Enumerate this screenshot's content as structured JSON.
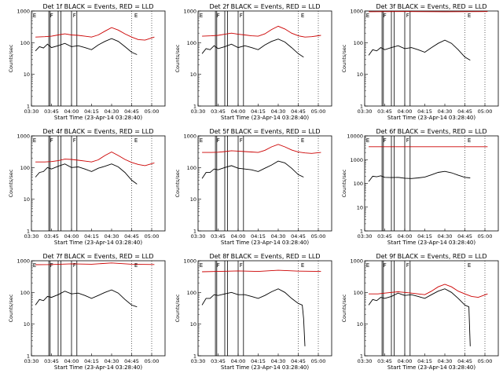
{
  "chart_data": [
    {
      "type": "line",
      "title": "Det 1f BLACK = Events, RED = LLD",
      "xlabel": "Start Time (23-Apr-14 03:28:40)",
      "ylabel": "Counts/sec",
      "x_ticks": [
        "03:30",
        "03:45",
        "04:00",
        "04:15",
        "04:30",
        "04:45",
        "05:00"
      ],
      "y_ticks": [
        "1",
        "10",
        "100",
        "1000"
      ],
      "ylim": [
        1,
        1000
      ],
      "y_scale": "log",
      "markers": [
        "E",
        "F",
        "F",
        "E"
      ],
      "series": [
        {
          "name": "Events",
          "color": "#000000",
          "x": [
            "03:33",
            "03:36",
            "03:39",
            "03:42",
            "03:45",
            "03:50",
            "03:55",
            "04:00",
            "04:05",
            "04:10",
            "04:15",
            "04:20",
            "04:25",
            "04:30",
            "04:35",
            "04:40",
            "04:45",
            "04:49"
          ],
          "y": [
            55,
            75,
            68,
            90,
            70,
            80,
            95,
            75,
            80,
            70,
            60,
            85,
            110,
            135,
            110,
            75,
            50,
            42
          ]
        },
        {
          "name": "LLD",
          "color": "#cc0000",
          "x": [
            "03:33",
            "03:40",
            "03:45",
            "03:50",
            "03:55",
            "04:00",
            "04:05",
            "04:10",
            "04:15",
            "04:20",
            "04:25",
            "04:30",
            "04:35",
            "04:40",
            "04:45",
            "04:50",
            "04:55",
            "05:02"
          ],
          "y": [
            150,
            155,
            160,
            175,
            190,
            175,
            170,
            160,
            150,
            175,
            230,
            300,
            250,
            190,
            150,
            125,
            120,
            150
          ]
        }
      ]
    },
    {
      "type": "line",
      "title": "Det 2f BLACK = Events, RED = LLD",
      "xlabel": "Start Time (23-Apr-14 03:28:40)",
      "ylabel": "Counts/sec",
      "x_ticks": [
        "03:30",
        "03:45",
        "04:00",
        "04:15",
        "04:30",
        "04:45",
        "05:00"
      ],
      "y_ticks": [
        "1",
        "10",
        "100",
        "1000"
      ],
      "ylim": [
        1,
        1000
      ],
      "y_scale": "log",
      "markers": [
        "E",
        "F",
        "F",
        "E"
      ],
      "series": [
        {
          "name": "Events",
          "color": "#000000",
          "x": [
            "03:33",
            "03:36",
            "03:39",
            "03:42",
            "03:45",
            "03:50",
            "03:55",
            "04:00",
            "04:05",
            "04:10",
            "04:15",
            "04:20",
            "04:25",
            "04:30",
            "04:35",
            "04:40",
            "04:45",
            "04:49"
          ],
          "y": [
            45,
            65,
            60,
            80,
            65,
            75,
            90,
            70,
            80,
            70,
            60,
            85,
            110,
            130,
            105,
            70,
            45,
            35
          ]
        },
        {
          "name": "LLD",
          "color": "#cc0000",
          "x": [
            "03:33",
            "03:40",
            "03:45",
            "03:50",
            "03:55",
            "04:00",
            "04:05",
            "04:10",
            "04:15",
            "04:20",
            "04:25",
            "04:30",
            "04:35",
            "04:40",
            "04:45",
            "04:50",
            "04:55",
            "05:02"
          ],
          "y": [
            160,
            165,
            170,
            185,
            200,
            185,
            175,
            165,
            160,
            190,
            260,
            330,
            270,
            200,
            165,
            150,
            155,
            170
          ]
        }
      ]
    },
    {
      "type": "line",
      "title": "Det 3f BLACK = Events, RED = LLD",
      "xlabel": "Start Time (23-Apr-14 03:28:40)",
      "ylabel": "Counts/sec",
      "x_ticks": [
        "03:30",
        "03:45",
        "04:00",
        "04:15",
        "04:30",
        "04:45",
        "05:00"
      ],
      "y_ticks": [
        "1",
        "10",
        "100",
        "1000"
      ],
      "ylim": [
        1,
        1000
      ],
      "y_scale": "log",
      "markers": [
        "E",
        "F",
        "F",
        "E"
      ],
      "series": [
        {
          "name": "Events",
          "color": "#000000",
          "x": [
            "03:33",
            "03:36",
            "03:39",
            "03:42",
            "03:45",
            "03:50",
            "03:55",
            "04:00",
            "04:05",
            "04:10",
            "04:15",
            "04:20",
            "04:25",
            "04:30",
            "04:35",
            "04:40",
            "04:45",
            "04:49"
          ],
          "y": [
            40,
            60,
            55,
            70,
            60,
            70,
            80,
            65,
            70,
            60,
            50,
            70,
            95,
            120,
            95,
            60,
            35,
            28
          ]
        },
        {
          "name": "LLD",
          "color": "#cc0000",
          "x": [
            "03:33",
            "04:00",
            "04:30",
            "05:02"
          ],
          "y": [
            950,
            960,
            950,
            960
          ]
        }
      ]
    },
    {
      "type": "line",
      "title": "Det 4f BLACK = Events, RED = LLD",
      "xlabel": "Start Time (23-Apr-14 03:28:40)",
      "ylabel": "Counts/sec",
      "x_ticks": [
        "03:30",
        "03:45",
        "04:00",
        "04:15",
        "04:30",
        "04:45",
        "05:00"
      ],
      "y_ticks": [
        "1",
        "10",
        "100",
        "1000"
      ],
      "ylim": [
        1,
        1000
      ],
      "y_scale": "log",
      "markers": [
        "E",
        "F",
        "F",
        "E"
      ],
      "series": [
        {
          "name": "Events",
          "color": "#000000",
          "x": [
            "03:33",
            "03:36",
            "03:39",
            "03:42",
            "03:45",
            "03:50",
            "03:55",
            "04:00",
            "04:05",
            "04:10",
            "04:15",
            "04:20",
            "04:25",
            "04:30",
            "04:35",
            "04:40",
            "04:45",
            "04:49"
          ],
          "y": [
            50,
            70,
            75,
            100,
            90,
            110,
            130,
            100,
            105,
            90,
            75,
            95,
            110,
            130,
            105,
            70,
            40,
            30
          ]
        },
        {
          "name": "LLD",
          "color": "#cc0000",
          "x": [
            "03:33",
            "03:40",
            "03:45",
            "03:50",
            "03:55",
            "04:00",
            "04:05",
            "04:10",
            "04:15",
            "04:20",
            "04:25",
            "04:30",
            "04:35",
            "04:40",
            "04:45",
            "04:50",
            "04:55",
            "05:02"
          ],
          "y": [
            150,
            150,
            155,
            165,
            185,
            180,
            170,
            160,
            150,
            175,
            240,
            310,
            240,
            180,
            145,
            125,
            115,
            140
          ]
        }
      ]
    },
    {
      "type": "line",
      "title": "Det 5f BLACK = Events, RED = LLD",
      "xlabel": "Start Time (23-Apr-14 03:28:40)",
      "ylabel": "Counts/sec",
      "x_ticks": [
        "03:30",
        "03:45",
        "04:00",
        "04:15",
        "04:30",
        "04:45",
        "05:00"
      ],
      "y_ticks": [
        "1",
        "10",
        "100",
        "1000"
      ],
      "ylim": [
        1,
        1000
      ],
      "y_scale": "log",
      "markers": [
        "E",
        "F",
        "F",
        "E"
      ],
      "series": [
        {
          "name": "Events",
          "color": "#000000",
          "x": [
            "03:33",
            "03:36",
            "03:39",
            "03:42",
            "03:45",
            "03:50",
            "03:55",
            "04:00",
            "04:05",
            "04:10",
            "04:15",
            "04:20",
            "04:25",
            "04:30",
            "04:35",
            "04:40",
            "04:45",
            "04:49"
          ],
          "y": [
            45,
            70,
            70,
            90,
            85,
            100,
            115,
            95,
            90,
            85,
            75,
            95,
            120,
            160,
            140,
            95,
            60,
            50
          ]
        },
        {
          "name": "LLD",
          "color": "#cc0000",
          "x": [
            "03:33",
            "03:40",
            "03:45",
            "03:50",
            "03:55",
            "04:00",
            "04:05",
            "04:10",
            "04:15",
            "04:20",
            "04:25",
            "04:30",
            "04:35",
            "04:40",
            "04:45",
            "04:50",
            "04:55",
            "05:02"
          ],
          "y": [
            300,
            300,
            305,
            320,
            340,
            330,
            320,
            310,
            300,
            350,
            450,
            540,
            450,
            360,
            310,
            290,
            280,
            300
          ]
        }
      ]
    },
    {
      "type": "line",
      "title": "Det 6f BLACK = Events, RED = LLD",
      "xlabel": "Start Time (23-Apr-14 03:28:40)",
      "ylabel": "Counts/sec",
      "x_ticks": [
        "03:30",
        "03:45",
        "04:00",
        "04:15",
        "04:30",
        "04:45",
        "05:00"
      ],
      "y_ticks": [
        "1",
        "10",
        "100",
        "1000",
        "10000"
      ],
      "ylim": [
        1,
        10000
      ],
      "y_scale": "log",
      "markers": [
        "E",
        "F",
        "F",
        "E"
      ],
      "series": [
        {
          "name": "Events",
          "color": "#000000",
          "x": [
            "03:33",
            "03:36",
            "03:39",
            "03:42",
            "03:45",
            "03:50",
            "03:55",
            "04:00",
            "04:05",
            "04:10",
            "04:15",
            "04:20",
            "04:25",
            "04:30",
            "04:35",
            "04:40",
            "04:45",
            "04:49"
          ],
          "y": [
            120,
            200,
            190,
            210,
            180,
            175,
            180,
            165,
            160,
            170,
            185,
            230,
            290,
            320,
            280,
            220,
            180,
            170
          ]
        },
        {
          "name": "LLD",
          "color": "#cc0000",
          "x": [
            "03:33",
            "04:00",
            "04:30",
            "05:02"
          ],
          "y": [
            3500,
            3500,
            3500,
            3500
          ]
        }
      ]
    },
    {
      "type": "line",
      "title": "Det 7f BLACK = Events, RED = LLD",
      "xlabel": "Start Time (23-Apr-14 03:28:40)",
      "ylabel": "Counts/sec",
      "x_ticks": [
        "03:30",
        "03:45",
        "04:00",
        "04:15",
        "04:30",
        "04:45",
        "05:00"
      ],
      "y_ticks": [
        "1",
        "10",
        "100",
        "1000"
      ],
      "ylim": [
        1,
        1000
      ],
      "y_scale": "log",
      "markers": [
        "E",
        "F",
        "F",
        "E"
      ],
      "series": [
        {
          "name": "Events",
          "color": "#000000",
          "x": [
            "03:33",
            "03:36",
            "03:39",
            "03:42",
            "03:45",
            "03:50",
            "03:55",
            "04:00",
            "04:05",
            "04:10",
            "04:15",
            "04:20",
            "04:25",
            "04:30",
            "04:35",
            "04:40",
            "04:45",
            "04:49"
          ],
          "y": [
            40,
            60,
            55,
            75,
            70,
            85,
            110,
            90,
            95,
            80,
            65,
            80,
            100,
            120,
            95,
            60,
            40,
            35
          ]
        },
        {
          "name": "LLD",
          "color": "#cc0000",
          "x": [
            "03:33",
            "03:45",
            "04:00",
            "04:15",
            "04:30",
            "04:45",
            "05:02"
          ],
          "y": [
            750,
            760,
            800,
            780,
            850,
            780,
            760
          ]
        }
      ]
    },
    {
      "type": "line",
      "title": "Det 8f BLACK = Events, RED = LLD",
      "xlabel": "Start Time (23-Apr-14 03:28:40)",
      "ylabel": "Counts/sec",
      "x_ticks": [
        "03:30",
        "03:45",
        "04:00",
        "04:15",
        "04:30",
        "04:45",
        "05:00"
      ],
      "y_ticks": [
        "1",
        "10",
        "100",
        "1000"
      ],
      "ylim": [
        1,
        1000
      ],
      "y_scale": "log",
      "markers": [
        "E",
        "F",
        "F",
        "E"
      ],
      "series": [
        {
          "name": "Events",
          "color": "#000000",
          "x": [
            "03:33",
            "03:36",
            "03:39",
            "03:42",
            "03:45",
            "03:50",
            "03:55",
            "04:00",
            "04:05",
            "04:10",
            "04:15",
            "04:20",
            "04:25",
            "04:30",
            "04:35",
            "04:40",
            "04:45",
            "04:48",
            "04:49",
            "04:50"
          ],
          "y": [
            40,
            65,
            65,
            85,
            80,
            90,
            100,
            85,
            85,
            75,
            65,
            80,
            105,
            130,
            100,
            65,
            45,
            40,
            15,
            2
          ]
        },
        {
          "name": "LLD",
          "color": "#cc0000",
          "x": [
            "03:33",
            "03:45",
            "04:00",
            "04:15",
            "04:30",
            "04:45",
            "05:02"
          ],
          "y": [
            450,
            460,
            480,
            460,
            500,
            470,
            460
          ]
        }
      ]
    },
    {
      "type": "line",
      "title": "Det 9f BLACK = Events, RED = LLD",
      "xlabel": "Start Time (23-Apr-14 03:28:40)",
      "ylabel": "Counts/sec",
      "x_ticks": [
        "03:30",
        "03:45",
        "04:00",
        "04:15",
        "04:30",
        "04:45",
        "05:00"
      ],
      "y_ticks": [
        "1",
        "10",
        "100",
        "1000"
      ],
      "ylim": [
        1,
        1000
      ],
      "y_scale": "log",
      "markers": [
        "E",
        "F",
        "F",
        "E"
      ],
      "series": [
        {
          "name": "Events",
          "color": "#000000",
          "x": [
            "03:33",
            "03:36",
            "03:39",
            "03:42",
            "03:45",
            "03:50",
            "03:55",
            "04:00",
            "04:05",
            "04:10",
            "04:15",
            "04:20",
            "04:25",
            "04:30",
            "04:35",
            "04:40",
            "04:45",
            "04:48",
            "04:49"
          ],
          "y": [
            40,
            60,
            55,
            70,
            65,
            75,
            95,
            80,
            85,
            75,
            65,
            85,
            110,
            130,
            100,
            65,
            40,
            35,
            2
          ]
        },
        {
          "name": "LLD",
          "color": "#cc0000",
          "x": [
            "03:33",
            "03:40",
            "03:45",
            "03:50",
            "03:55",
            "04:00",
            "04:05",
            "04:10",
            "04:15",
            "04:20",
            "04:25",
            "04:30",
            "04:35",
            "04:40",
            "04:45",
            "04:50",
            "04:55",
            "05:02"
          ],
          "y": [
            90,
            90,
            95,
            100,
            105,
            100,
            95,
            90,
            85,
            110,
            150,
            180,
            150,
            110,
            90,
            75,
            70,
            90
          ]
        }
      ]
    }
  ]
}
